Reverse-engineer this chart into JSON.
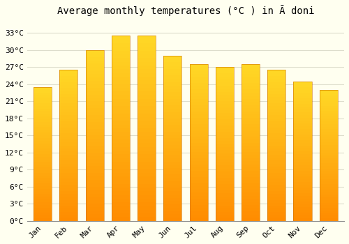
{
  "title": "Average monthly temperatures (°C ) in Ā doni",
  "months": [
    "Jan",
    "Feb",
    "Mar",
    "Apr",
    "May",
    "Jun",
    "Jul",
    "Aug",
    "Sep",
    "Oct",
    "Nov",
    "Dec"
  ],
  "temperatures": [
    23.5,
    26.5,
    30.0,
    32.5,
    32.5,
    29.0,
    27.5,
    27.0,
    27.5,
    26.5,
    24.5,
    23.0
  ],
  "bar_color_top": "#FFC04D",
  "bar_color_bottom": "#FF8C00",
  "bar_edge_color": "#CC7000",
  "background_color": "#FFFFF0",
  "grid_color": "#DDDDCC",
  "ylabel_ticks": [
    0,
    3,
    6,
    9,
    12,
    15,
    18,
    21,
    24,
    27,
    30,
    33
  ],
  "ylim": [
    0,
    35
  ],
  "title_fontsize": 10,
  "tick_fontsize": 8,
  "font_family": "monospace",
  "bar_width": 0.7
}
